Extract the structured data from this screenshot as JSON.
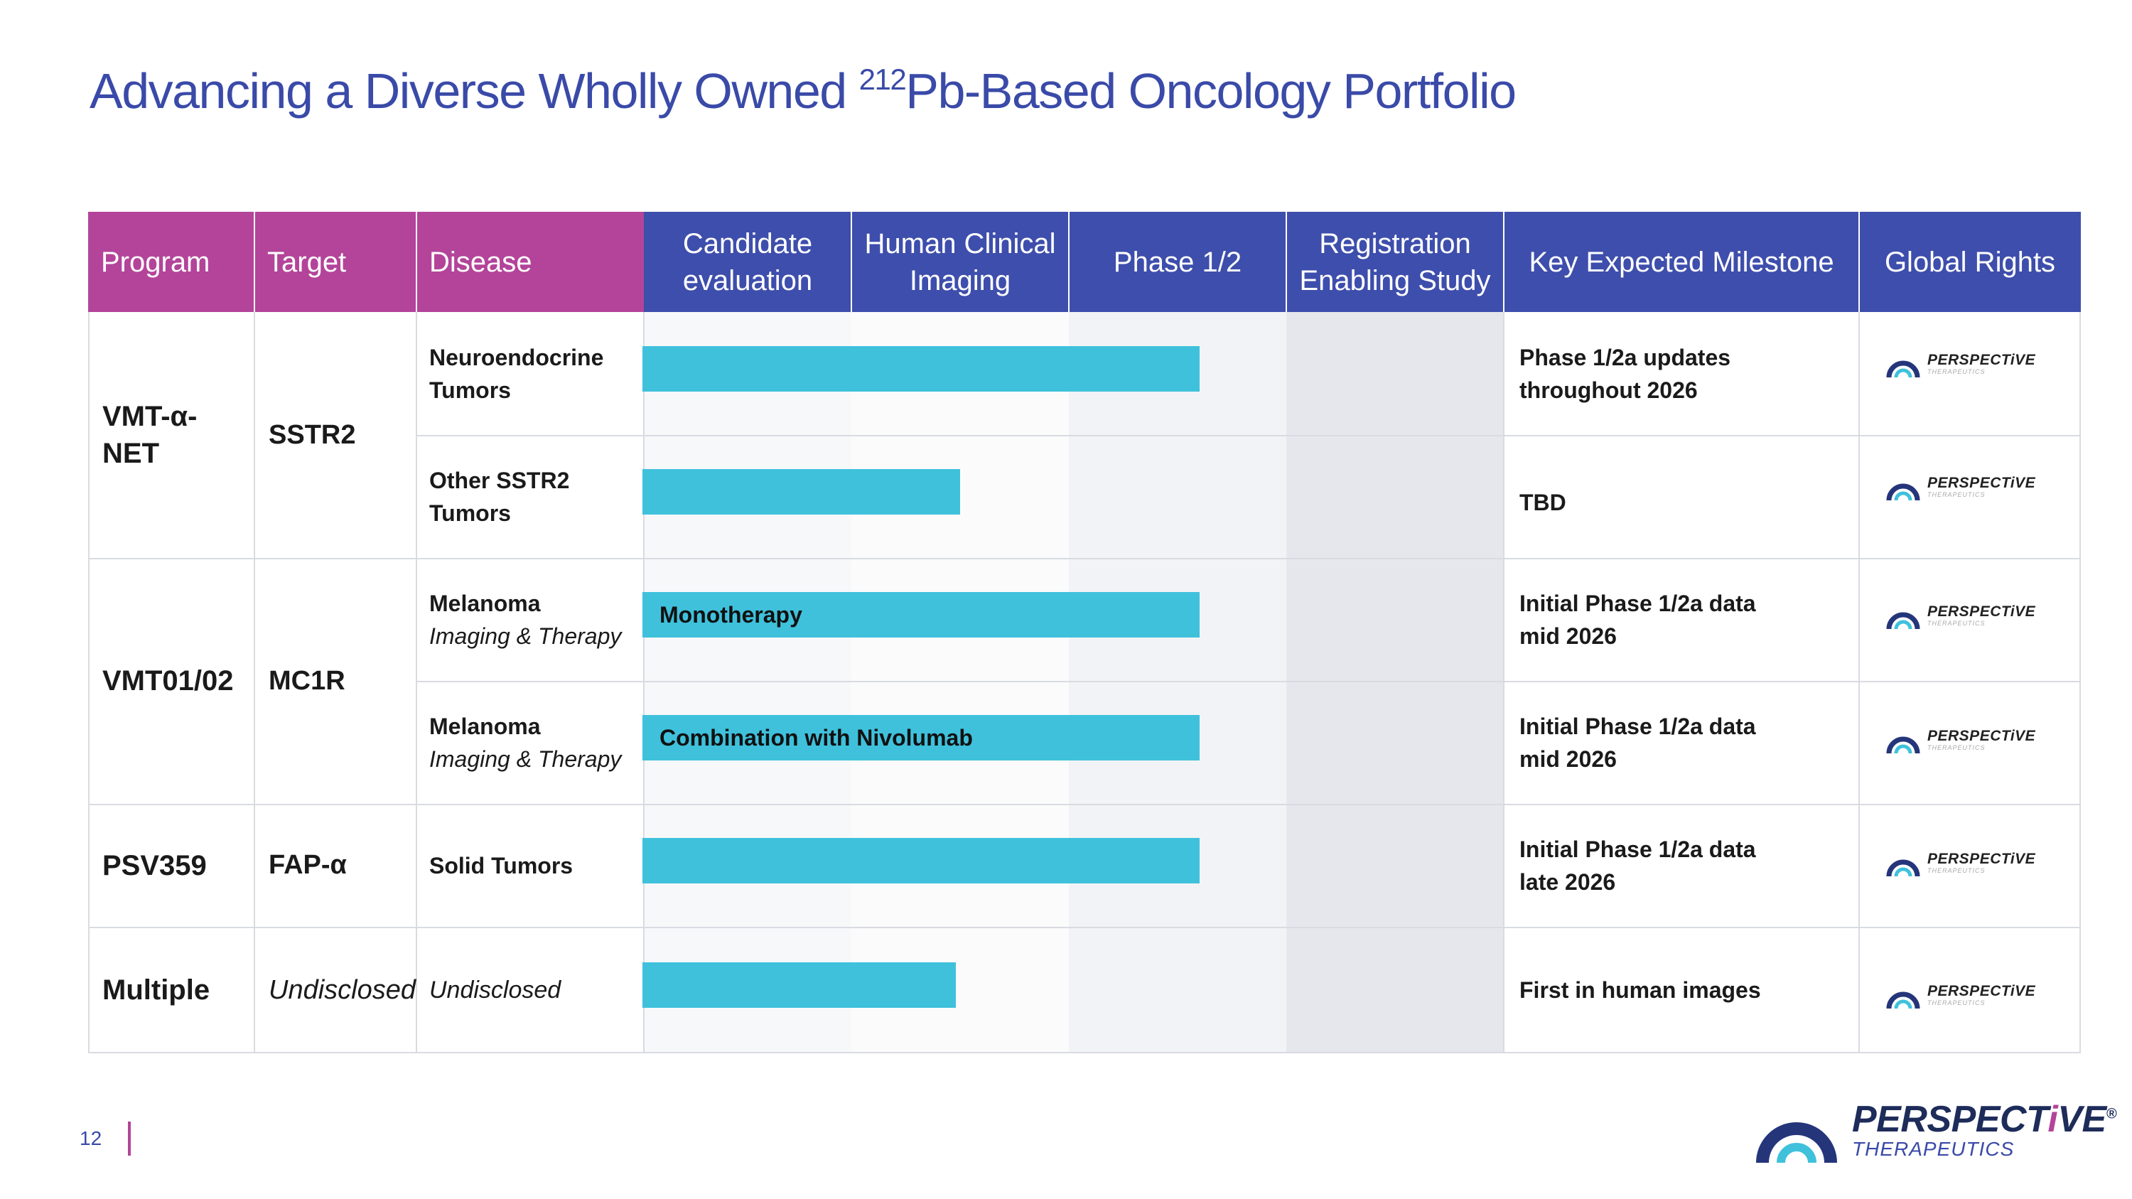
{
  "title": {
    "prefix": "Advancing a Diverse Wholly Owned ",
    "sup": "212",
    "suffix": "Pb-Based Oncology Portfolio"
  },
  "headers": {
    "program": "Program",
    "target": "Target",
    "disease": "Disease",
    "stages": [
      "Candidate evaluation",
      "Human Clinical Imaging",
      "Phase 1/2",
      "Registration Enabling Study"
    ],
    "milestone": "Key Expected Milestone",
    "rights": "Global Rights"
  },
  "programs": [
    {
      "program": "VMT-α-NET",
      "target": "SSTR2"
    },
    {
      "program": "VMT01/02",
      "target": "MC1R"
    },
    {
      "program": "PSV359",
      "target": "FAP-α"
    },
    {
      "program": "Multiple",
      "target": "Undisclosed"
    }
  ],
  "rows": [
    {
      "disease": "Neuroendocrine Tumors",
      "disease_sub": "",
      "bar_label": "",
      "progress_stages": 2.6,
      "milestone": "Phase 1/2a updates throughout 2026"
    },
    {
      "disease": "Other SSTR2 Tumors",
      "disease_sub": "",
      "bar_label": "",
      "progress_stages": 1.5,
      "milestone": "TBD"
    },
    {
      "disease": "Melanoma",
      "disease_sub": "Imaging & Therapy",
      "bar_label": "Monotherapy",
      "progress_stages": 2.6,
      "milestone": "Initial Phase 1/2a data mid 2026"
    },
    {
      "disease": "Melanoma",
      "disease_sub": "Imaging & Therapy",
      "bar_label": "Combination with Nivolumab",
      "progress_stages": 2.6,
      "milestone": "Initial Phase 1/2a data mid 2026"
    },
    {
      "disease": "Solid Tumors",
      "disease_sub": "",
      "bar_label": "",
      "progress_stages": 2.6,
      "milestone": "Initial Phase 1/2a data late 2026"
    },
    {
      "disease": "Undisclosed",
      "disease_sub": "",
      "bar_label": "",
      "progress_stages": 1.48,
      "milestone": "First in human images"
    }
  ],
  "rights_logo": {
    "name": "PERSPECTiVE",
    "sub": "THERAPEUTICS"
  },
  "footer": {
    "page_number": "12",
    "logo_name_a": "PERSPECT",
    "logo_name_b": "i",
    "logo_name_c": "VE",
    "logo_reg": "®",
    "logo_sub": "THERAPEUTICS"
  },
  "colors": {
    "magenta": "#b3449a",
    "navy": "#3e4eac",
    "bar": "#3fc1dc",
    "title": "#3a4aa8"
  }
}
